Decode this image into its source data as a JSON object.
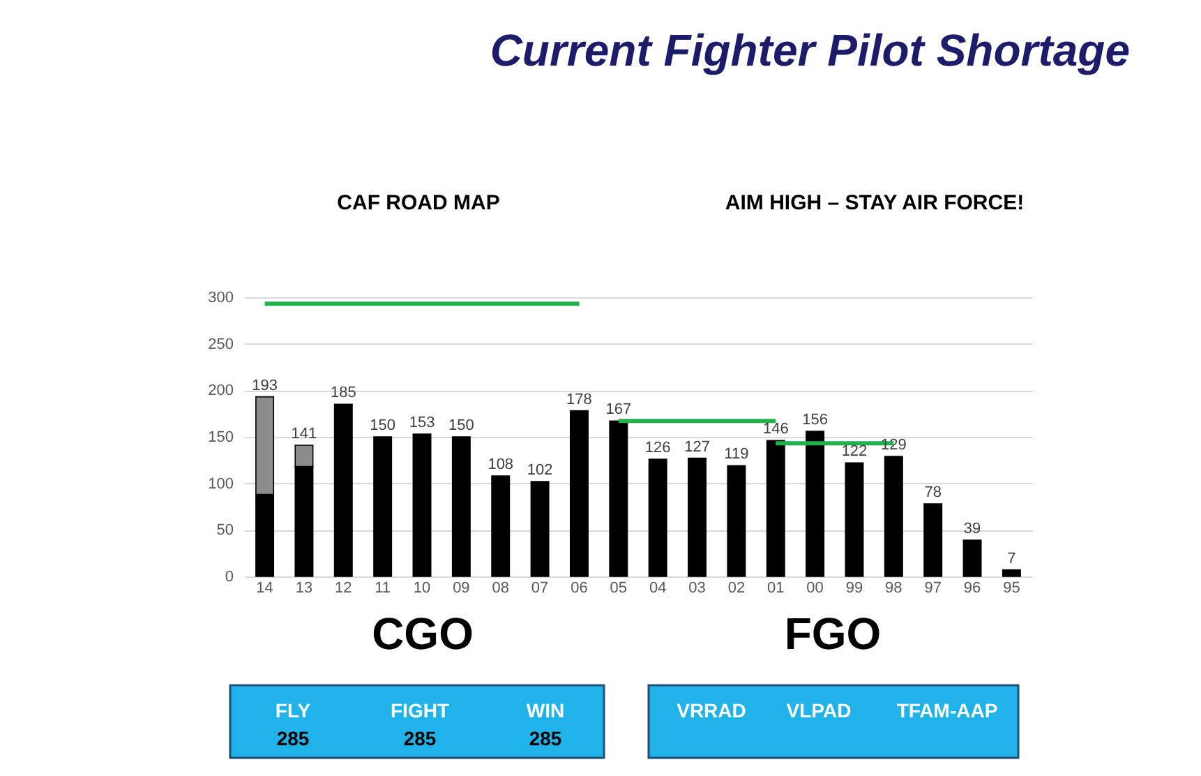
{
  "chart_data": {
    "type": "bar",
    "title": "Current Fighter Pilot Shortage",
    "categories": [
      "14",
      "13",
      "12",
      "11",
      "10",
      "09",
      "08",
      "07",
      "06",
      "05",
      "04",
      "03",
      "02",
      "01",
      "00",
      "99",
      "98",
      "97",
      "96",
      "95"
    ],
    "stacked": true,
    "series": [
      {
        "color": "#000000",
        "values": [
          88,
          118,
          185,
          150,
          153,
          150,
          108,
          102,
          178,
          167,
          126,
          127,
          119,
          146,
          156,
          122,
          129,
          78,
          39,
          7
        ]
      },
      {
        "color": "#8c8c8c",
        "values": [
          105,
          23,
          null,
          null,
          null,
          null,
          null,
          null,
          null,
          null,
          null,
          null,
          null,
          null,
          null,
          null,
          null,
          null,
          null,
          null
        ]
      },
      {
        "type": "line",
        "color": "#22b14c",
        "x": [
          "14",
          "06"
        ],
        "values": [
          293,
          293
        ]
      },
      {
        "type": "line",
        "color": "#22b14c",
        "x": [
          "05",
          "01"
        ],
        "values": [
          167,
          167
        ]
      },
      {
        "type": "line",
        "color": "#22b14c",
        "x": [
          "01",
          "98"
        ],
        "values": [
          143,
          143
        ]
      }
    ],
    "totals": [
      "193",
      "141",
      "185",
      "150",
      "153",
      "150",
      "108",
      "102",
      "178",
      "167",
      "126",
      "127",
      "119",
      "146",
      "156",
      "122",
      "129",
      "78",
      "39",
      "7"
    ],
    "ylim": [
      0,
      300
    ],
    "yticks": [
      0,
      50,
      100,
      150,
      200,
      250,
      300
    ],
    "grid": "y",
    "annotations": [
      "CAF ROAD MAP",
      "AIM HIGH – STAY AIR FORCE!",
      "CGO",
      "FGO",
      "FLY",
      "285",
      "FIGHT",
      "285",
      "WIN",
      "285",
      "VRRAD",
      "VLPAD",
      "TFAM-AAP"
    ]
  }
}
